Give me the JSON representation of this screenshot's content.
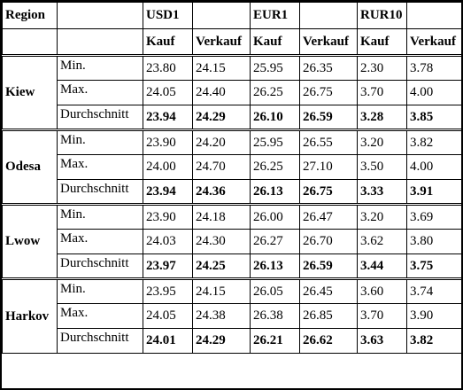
{
  "header": {
    "region_label": "Region",
    "currencies": [
      "USD1",
      "EUR1",
      "RUR10"
    ],
    "kauf_label": "Kauf",
    "verkauf_label": "Verkauf"
  },
  "regions": [
    {
      "name": "Kiew",
      "rows": [
        {
          "stat": "Min.",
          "values": [
            "23.80",
            "24.15",
            "25.95",
            "26.35",
            "2.30",
            "3.78"
          ]
        },
        {
          "stat": "Max.",
          "values": [
            "24.05",
            "24.40",
            "26.25",
            "26.75",
            "3.70",
            "4.00"
          ]
        },
        {
          "stat": "Durchschnitt",
          "values": [
            "23.94",
            "24.29",
            "26.10",
            "26.59",
            "3.28",
            "3.85"
          ]
        }
      ]
    },
    {
      "name": "Odesa",
      "rows": [
        {
          "stat": "Min.",
          "values": [
            "23.90",
            "24.20",
            "25.95",
            "26.55",
            "3.20",
            "3.82"
          ]
        },
        {
          "stat": "Max.",
          "values": [
            "24.00",
            "24.70",
            "26.25",
            "27.10",
            "3.50",
            "4.00"
          ]
        },
        {
          "stat": "Durchschnitt",
          "values": [
            "23.94",
            "24.36",
            "26.13",
            "26.75",
            "3.33",
            "3.91"
          ]
        }
      ]
    },
    {
      "name": "Lwow",
      "rows": [
        {
          "stat": "Min.",
          "values": [
            "23.90",
            "24.18",
            "26.00",
            "26.47",
            "3.20",
            "3.69"
          ]
        },
        {
          "stat": "Max.",
          "values": [
            "24.03",
            "24.30",
            "26.27",
            "26.70",
            "3.62",
            "3.80"
          ]
        },
        {
          "stat": "Durchschnitt",
          "values": [
            "23.97",
            "24.25",
            "26.13",
            "26.59",
            "3.44",
            "3.75"
          ]
        }
      ]
    },
    {
      "name": "Harkov",
      "rows": [
        {
          "stat": "Min.",
          "values": [
            "23.95",
            "24.15",
            "26.05",
            "26.45",
            "3.60",
            "3.74"
          ]
        },
        {
          "stat": "Max.",
          "values": [
            "24.05",
            "24.38",
            "26.38",
            "26.85",
            "3.70",
            "3.90"
          ]
        },
        {
          "stat": "Durchschnitt",
          "values": [
            "24.01",
            "24.29",
            "26.21",
            "26.62",
            "3.63",
            "3.82"
          ]
        }
      ]
    }
  ]
}
